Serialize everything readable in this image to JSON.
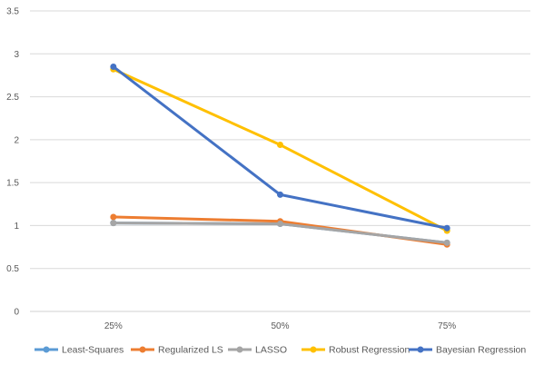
{
  "chart_data": {
    "type": "line",
    "title": "",
    "xlabel": "",
    "ylabel": "",
    "categories": [
      "25%",
      "50%",
      "75%"
    ],
    "ylim": [
      0,
      3.5
    ],
    "yticks": [
      "0",
      "0.5",
      "1",
      "1.5",
      "2",
      "2.5",
      "3",
      "3.5"
    ],
    "grid": true,
    "legend_position": "bottom",
    "series": [
      {
        "name": "Least-Squares",
        "color": "#5B9BD5",
        "values": [
          1.03,
          1.02,
          0.8
        ]
      },
      {
        "name": "Regularized LS",
        "color": "#ED7D31",
        "values": [
          1.1,
          1.05,
          0.78
        ]
      },
      {
        "name": "LASSO",
        "color": "#A5A5A5",
        "values": [
          1.03,
          1.02,
          0.8
        ]
      },
      {
        "name": "Robust Regression",
        "color": "#FFC000",
        "values": [
          2.82,
          1.94,
          0.94
        ]
      },
      {
        "name": "Bayesian Regression",
        "color": "#4472C4",
        "values": [
          2.85,
          1.36,
          0.97
        ]
      }
    ]
  }
}
